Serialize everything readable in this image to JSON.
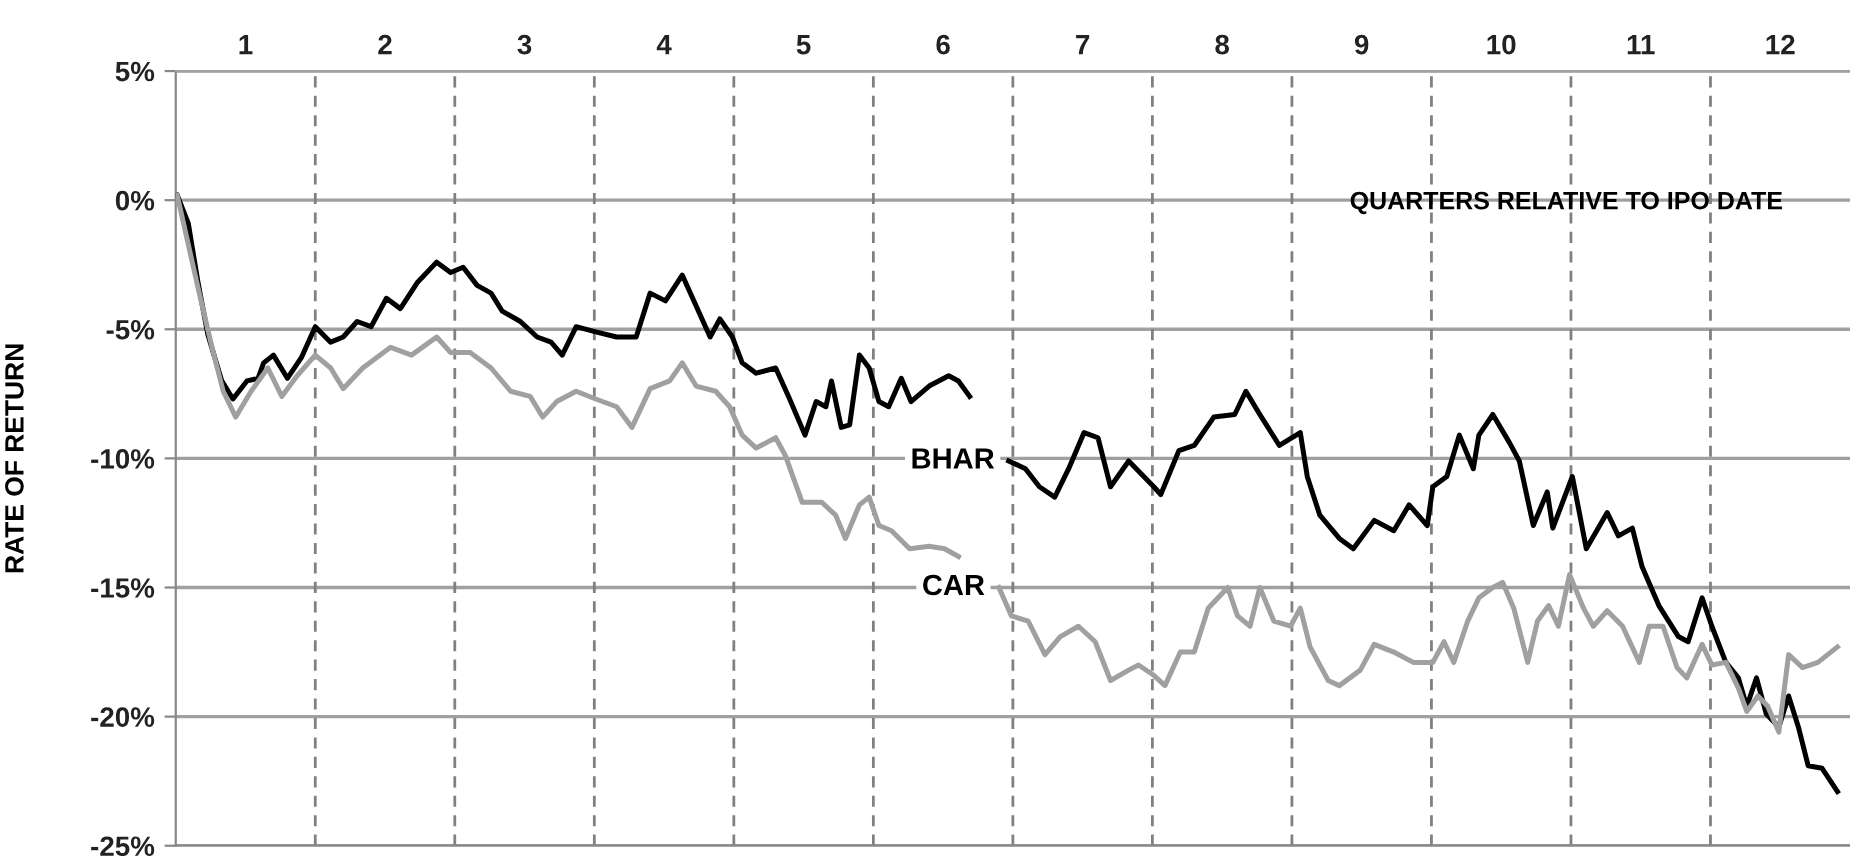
{
  "chart_data": {
    "type": "line",
    "ylabel": "RATE OF RETURN",
    "annotations": [
      "QUARTERS RELATIVE TO IPO DATE"
    ],
    "xlim": [
      0,
      12
    ],
    "xticks": [
      {
        "value": 0.5,
        "label": "1"
      },
      {
        "value": 1.5,
        "label": "2"
      },
      {
        "value": 2.5,
        "label": "3"
      },
      {
        "value": 3.5,
        "label": "4"
      },
      {
        "value": 4.5,
        "label": "5"
      },
      {
        "value": 5.5,
        "label": "6"
      },
      {
        "value": 6.5,
        "label": "7"
      },
      {
        "value": 7.5,
        "label": "8"
      },
      {
        "value": 8.5,
        "label": "9"
      },
      {
        "value": 9.5,
        "label": "10"
      },
      {
        "value": 10.5,
        "label": "11"
      },
      {
        "value": 11.5,
        "label": "12"
      }
    ],
    "ylim": [
      -25,
      5
    ],
    "yticks": [
      {
        "value": -25,
        "label": "-25%"
      },
      {
        "value": -20,
        "label": "-20%"
      },
      {
        "value": -15,
        "label": "-15%"
      },
      {
        "value": -10,
        "label": "-10%"
      },
      {
        "value": -5,
        "label": "-5%"
      },
      {
        "value": 0,
        "label": "0%"
      },
      {
        "value": 5,
        "label": "5%"
      }
    ],
    "grid": "y",
    "line_style": "solid",
    "ref_lines": [
      {
        "axis": "x",
        "value": 1,
        "line_style": "dashed",
        "color": "#808080"
      },
      {
        "axis": "x",
        "value": 2,
        "line_style": "dashed",
        "color": "#808080"
      },
      {
        "axis": "x",
        "value": 3,
        "line_style": "dashed",
        "color": "#808080"
      },
      {
        "axis": "x",
        "value": 4,
        "line_style": "dashed",
        "color": "#808080"
      },
      {
        "axis": "x",
        "value": 5,
        "line_style": "dashed",
        "color": "#808080"
      },
      {
        "axis": "x",
        "value": 6,
        "line_style": "dashed",
        "color": "#808080"
      },
      {
        "axis": "x",
        "value": 7,
        "line_style": "dashed",
        "color": "#808080"
      },
      {
        "axis": "x",
        "value": 8,
        "line_style": "dashed",
        "color": "#808080"
      },
      {
        "axis": "x",
        "value": 9,
        "line_style": "dashed",
        "color": "#808080"
      },
      {
        "axis": "x",
        "value": 10,
        "line_style": "dashed",
        "color": "#808080"
      },
      {
        "axis": "x",
        "value": 11,
        "line_style": "dashed",
        "color": "#808080"
      }
    ],
    "series": [
      {
        "name": "BHAR",
        "color": "#000000",
        "x": [
          0.01,
          0.09,
          0.16,
          0.23,
          0.33,
          0.41,
          0.51,
          0.59,
          0.63,
          0.7,
          0.8,
          0.9,
          1.0,
          1.11,
          1.2,
          1.3,
          1.4,
          1.51,
          1.61,
          1.73,
          1.87,
          1.97,
          2.06,
          2.16,
          2.26,
          2.34,
          2.47,
          2.59,
          2.69,
          2.77,
          2.87,
          3.01,
          3.16,
          3.3,
          3.4,
          3.51,
          3.63,
          3.73,
          3.83,
          3.9,
          3.99,
          4.06,
          4.16,
          4.3,
          4.4,
          4.51,
          4.59,
          4.66,
          4.7,
          4.77,
          4.83,
          4.9,
          4.97,
          5.04,
          5.11,
          5.2,
          5.27,
          5.4,
          5.54,
          5.61,
          5.69,
          5.8,
          5.97,
          6.09,
          6.19,
          6.3,
          6.4,
          6.51,
          6.61,
          6.7,
          6.83,
          7.01,
          7.06,
          7.19,
          7.3,
          7.44,
          7.59,
          7.67,
          7.77,
          7.91,
          8.06,
          8.11,
          8.2,
          8.34,
          8.44,
          8.59,
          8.73,
          8.84,
          8.97,
          9.01,
          9.11,
          9.2,
          9.3,
          9.34,
          9.44,
          9.56,
          9.63,
          9.73,
          9.83,
          9.87,
          10.01,
          10.11,
          10.26,
          10.34,
          10.44,
          10.51,
          10.63,
          10.77,
          10.84,
          10.94,
          11.01,
          11.11,
          11.2,
          11.26,
          11.33,
          11.4,
          11.49,
          11.56,
          11.63,
          11.7,
          11.8,
          11.91
        ],
        "values": [
          0.2,
          -0.9,
          -3.2,
          -5.2,
          -7.0,
          -7.7,
          -7.0,
          -6.9,
          -6.3,
          -6.0,
          -6.9,
          -6.1,
          -4.9,
          -5.5,
          -5.3,
          -4.7,
          -4.9,
          -3.8,
          -4.2,
          -3.2,
          -2.4,
          -2.8,
          -2.6,
          -3.3,
          -3.6,
          -4.3,
          -4.7,
          -5.3,
          -5.5,
          -6.0,
          -4.9,
          -5.1,
          -5.3,
          -5.3,
          -3.6,
          -3.9,
          -2.9,
          -4.1,
          -5.3,
          -4.6,
          -5.3,
          -6.3,
          -6.7,
          -6.5,
          -7.7,
          -9.1,
          -7.8,
          -8.0,
          -7.0,
          -8.8,
          -8.7,
          -6.0,
          -6.5,
          -7.8,
          -8.0,
          -6.9,
          -7.8,
          -7.2,
          -6.8,
          -7.0,
          -7.6,
          null,
          -10.1,
          -10.4,
          -11.1,
          -11.5,
          -10.4,
          -9.0,
          -9.2,
          -11.1,
          -10.1,
          -11.1,
          -11.4,
          -9.7,
          -9.5,
          -8.4,
          -8.3,
          -7.4,
          -8.3,
          -9.5,
          -9.0,
          -10.7,
          -12.2,
          -13.1,
          -13.5,
          -12.4,
          -12.8,
          -11.8,
          -12.6,
          -11.1,
          -10.7,
          -9.1,
          -10.4,
          -9.1,
          -8.3,
          -9.4,
          -10.1,
          -12.6,
          -11.3,
          -12.7,
          -10.7,
          -13.5,
          -12.1,
          -13.0,
          -12.7,
          -14.2,
          -15.7,
          -16.9,
          -17.1,
          -15.4,
          -16.5,
          -17.9,
          -18.5,
          -19.6,
          -18.5,
          -19.9,
          -20.4,
          -19.2,
          -20.4,
          -21.9,
          -22.0,
          -22.9
        ]
      },
      {
        "name": "CAR",
        "color": "#a0a0a0",
        "x": [
          0.01,
          0.16,
          0.26,
          0.34,
          0.43,
          0.54,
          0.66,
          0.76,
          0.87,
          1.0,
          1.11,
          1.2,
          1.34,
          1.54,
          1.69,
          1.87,
          1.97,
          2.11,
          2.26,
          2.4,
          2.54,
          2.63,
          2.73,
          2.87,
          3.01,
          3.16,
          3.27,
          3.4,
          3.54,
          3.63,
          3.73,
          3.87,
          3.97,
          4.06,
          4.16,
          4.3,
          4.37,
          4.49,
          4.63,
          4.73,
          4.8,
          4.9,
          4.97,
          5.04,
          5.13,
          5.26,
          5.4,
          5.51,
          5.61,
          5.75,
          5.9,
          5.99,
          6.11,
          6.23,
          6.34,
          6.47,
          6.59,
          6.7,
          6.83,
          6.9,
          7.01,
          7.09,
          7.2,
          7.3,
          7.4,
          7.54,
          7.61,
          7.7,
          7.77,
          7.87,
          7.99,
          8.06,
          8.13,
          8.26,
          8.34,
          8.49,
          8.59,
          8.73,
          8.87,
          9.01,
          9.09,
          9.16,
          9.26,
          9.34,
          9.44,
          9.51,
          9.59,
          9.69,
          9.76,
          9.84,
          9.91,
          9.99,
          10.09,
          10.16,
          10.26,
          10.37,
          10.49,
          10.56,
          10.66,
          10.76,
          10.83,
          10.94,
          11.01,
          11.11,
          11.2,
          11.26,
          11.34,
          11.41,
          11.49,
          11.56,
          11.66,
          11.77,
          11.91
        ],
        "values": [
          0.2,
          -3.4,
          -5.7,
          -7.4,
          -8.4,
          -7.4,
          -6.5,
          -7.6,
          -6.8,
          -6.0,
          -6.5,
          -7.3,
          -6.5,
          -5.7,
          -6.0,
          -5.3,
          -5.9,
          -5.9,
          -6.5,
          -7.4,
          -7.6,
          -8.4,
          -7.8,
          -7.4,
          -7.7,
          -8.0,
          -8.8,
          -7.3,
          -7.0,
          -6.3,
          -7.2,
          -7.4,
          -8.0,
          -9.1,
          -9.6,
          -9.2,
          -9.9,
          -11.7,
          -11.7,
          -12.2,
          -13.1,
          -11.8,
          -11.5,
          -12.6,
          -12.8,
          -13.5,
          -13.4,
          -13.5,
          -13.8,
          null,
          -15.0,
          -16.1,
          -16.3,
          -17.6,
          -16.9,
          -16.5,
          -17.1,
          -18.6,
          -18.2,
          -18.0,
          -18.4,
          -18.8,
          -17.5,
          -17.5,
          -15.8,
          -15.0,
          -16.1,
          -16.5,
          -15.0,
          -16.3,
          -16.5,
          -15.8,
          -17.3,
          -18.6,
          -18.8,
          -18.2,
          -17.2,
          -17.5,
          -17.9,
          -17.9,
          -17.1,
          -17.9,
          -16.3,
          -15.4,
          -15.0,
          -14.8,
          -15.8,
          -17.9,
          -16.3,
          -15.7,
          -16.5,
          -14.5,
          -15.8,
          -16.5,
          -15.9,
          -16.5,
          -17.9,
          -16.5,
          -16.5,
          -18.1,
          -18.5,
          -17.2,
          -18.0,
          -17.9,
          -18.9,
          -19.8,
          -19.2,
          -19.6,
          -20.6,
          -17.6,
          -18.1,
          -17.9,
          -17.3
        ]
      }
    ]
  }
}
